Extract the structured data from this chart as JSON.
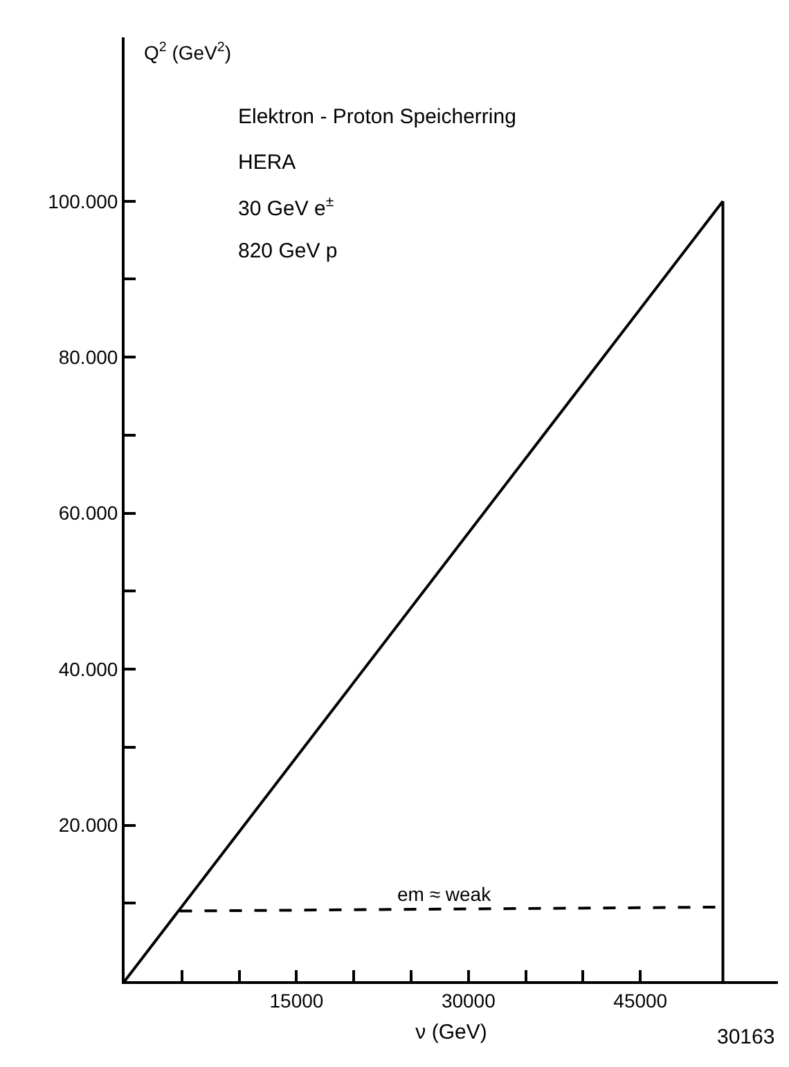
{
  "chart_data": {
    "type": "line",
    "xlabel": "ν (GeV)",
    "ylabel": "Q$^{2}$ (GeV$^{2}$)",
    "xlim": [
      0,
      57000
    ],
    "ylim": [
      0,
      121000
    ],
    "xticks": [
      {
        "value": 5000,
        "label": null
      },
      {
        "value": 10000,
        "label": null
      },
      15000,
      {
        "value": 20000,
        "label": null
      },
      {
        "value": 25000,
        "label": null
      },
      30000,
      {
        "value": 35000,
        "label": null
      },
      {
        "value": 40000,
        "label": null
      },
      45000
    ],
    "yticks": [
      {
        "value": 10000,
        "label": null
      },
      {
        "value": 20000,
        "label": "20.000"
      },
      {
        "value": 30000,
        "label": null
      },
      {
        "value": 40000,
        "label": "40.000"
      },
      {
        "value": 50000,
        "label": null
      },
      {
        "value": 60000,
        "label": "60.000"
      },
      {
        "value": 70000,
        "label": null
      },
      {
        "value": 80000,
        "label": "80.000"
      },
      {
        "value": 90000,
        "label": null
      },
      {
        "value": 100000,
        "label": "100.000"
      }
    ],
    "grid": false,
    "series": [
      {
        "color": "#000000",
        "x": [
          0,
          52200
        ],
        "values": [
          0,
          100000
        ],
        "line_style": "solid"
      },
      {
        "color": "#000000",
        "x": [
          52200,
          52200
        ],
        "values": [
          100000,
          0
        ],
        "line_style": "solid"
      },
      {
        "color": "#000000",
        "x": [
          4800,
          52200
        ],
        "values": [
          9000,
          9500
        ],
        "line_style": "dashed"
      }
    ],
    "annotations": [
      "Elektron - Proton Speicherring",
      "HERA",
      "30 GeV e$^{±}$",
      "820 GeV p",
      {
        "text": "em ≈ weak",
        "x": 28000,
        "y": 9300
      },
      "30163"
    ]
  }
}
